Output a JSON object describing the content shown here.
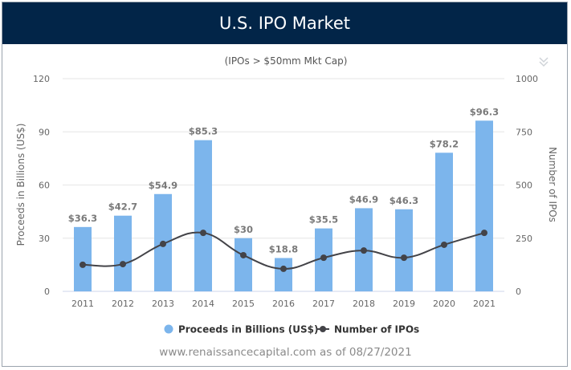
{
  "header": {
    "title": "U.S. IPO Market"
  },
  "footer": {
    "text": "www.renaissancecapital.com as of 08/27/2021"
  },
  "menu_icon": "double-chevron-down-icon",
  "chart_data": {
    "type": "bar+line",
    "subtitle": "(IPOs > $50mm Mkt Cap)",
    "categories": [
      "2011",
      "2012",
      "2013",
      "2014",
      "2015",
      "2016",
      "2017",
      "2018",
      "2019",
      "2020",
      "2021"
    ],
    "y_left": {
      "label": "Proceeds in Billions (US$)",
      "range": [
        0,
        120
      ],
      "ticks": [
        "0",
        "30",
        "60",
        "90",
        "120"
      ]
    },
    "y_right": {
      "label": "Number of IPOs",
      "range": [
        0,
        1000
      ],
      "ticks": [
        "0",
        "250",
        "500",
        "750",
        "1000"
      ]
    },
    "grid": true,
    "legend_position": "bottom",
    "series": [
      {
        "name": "Proceeds in Billions (US$)",
        "type": "bar",
        "axis": "left",
        "color": "#7cb5ec",
        "values": [
          36.3,
          42.7,
          54.9,
          85.3,
          30,
          18.8,
          35.5,
          46.9,
          46.3,
          78.2,
          96.3
        ],
        "labels": [
          "$36.3",
          "$42.7",
          "$54.9",
          "$85.3",
          "$30",
          "$18.8",
          "$35.5",
          "$46.9",
          "$46.3",
          "$78.2",
          "$96.3"
        ]
      },
      {
        "name": "Number of IPOs",
        "type": "line",
        "axis": "right",
        "color": "#434348",
        "values": [
          125,
          128,
          223,
          275,
          170,
          106,
          158,
          192,
          158,
          219,
          275
        ]
      }
    ]
  }
}
